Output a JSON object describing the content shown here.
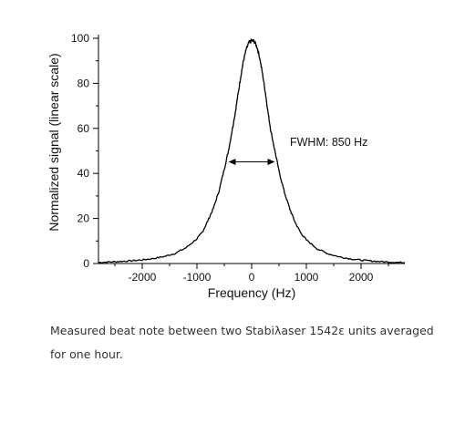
{
  "chart_data": {
    "type": "line",
    "xlabel": "Frequency  (Hz)",
    "ylabel": "Normalized signal  (linear scale)",
    "xlim": [
      -2800,
      2800
    ],
    "ylim": [
      0,
      100
    ],
    "xticks": [
      -2000,
      -1000,
      0,
      1000,
      2000
    ],
    "yticks": [
      0,
      20,
      40,
      60,
      80,
      100
    ],
    "grid": false,
    "series": [
      {
        "x": [
          -2800,
          -2600,
          -2400,
          -2200,
          -2000,
          -1800,
          -1600,
          -1400,
          -1200,
          -1000,
          -900,
          -800,
          -700,
          -600,
          -500,
          -425,
          -350,
          -300,
          -250,
          -200,
          -150,
          -100,
          -50,
          0,
          50,
          100,
          150,
          200,
          250,
          300,
          350,
          425,
          500,
          600,
          700,
          800,
          900,
          1000,
          1200,
          1400,
          1600,
          1800,
          2000,
          2200,
          2400,
          2600,
          2800
        ],
        "values": [
          0.5,
          0.7,
          0.9,
          1.2,
          1.6,
          2.2,
          3.1,
          4.5,
          7.0,
          11.0,
          14.0,
          19.0,
          24.5,
          32.0,
          42.0,
          50.0,
          60.0,
          67.0,
          75.0,
          83.0,
          90.0,
          95.0,
          98.0,
          99.0,
          98.5,
          96.0,
          91.0,
          84.0,
          76.0,
          67.0,
          59.0,
          50.0,
          41.0,
          31.5,
          24.0,
          18.0,
          13.5,
          10.5,
          6.5,
          4.3,
          3.0,
          2.1,
          1.5,
          1.1,
          0.8,
          0.6,
          0.4
        ]
      }
    ],
    "annotation": {
      "text": "FWHM: 850 Hz",
      "fwhm_from": -425,
      "fwhm_to": 425,
      "level": 50
    }
  },
  "caption": {
    "line1": "Measured beat note between two Stabiλaser 1542ε units averaged",
    "line2": "for one hour."
  }
}
